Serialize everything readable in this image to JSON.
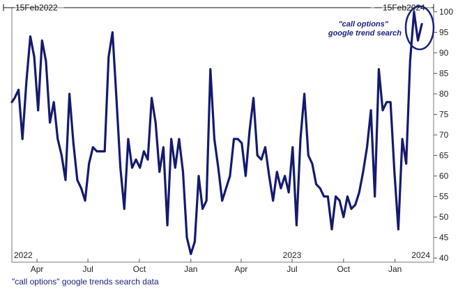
{
  "chart_data": {
    "type": "line",
    "range_start_label": "15Feb2022",
    "range_end_label": "15Feb2024",
    "annotation": [
      "\"call options\"",
      "google trend search"
    ],
    "source": "\"call options\" google trends search data",
    "y_ticks": [
      "40",
      "45",
      "50",
      "55",
      "60",
      "65",
      "70",
      "75",
      "80",
      "85",
      "90",
      "95",
      "100"
    ],
    "ylim": [
      39,
      101
    ],
    "x_tick_labels": [
      {
        "label": "Apr",
        "x": "2022-04-01"
      },
      {
        "label": "Jul",
        "x": "2022-07-01"
      },
      {
        "label": "Oct",
        "x": "2022-10-01"
      },
      {
        "label": "Jan",
        "x": "2023-01-01"
      },
      {
        "label": "Apr",
        "x": "2023-04-01"
      },
      {
        "label": "Jul",
        "x": "2023-07-01"
      },
      {
        "label": "Oct",
        "x": "2023-10-01"
      },
      {
        "label": "Jan",
        "x": "2024-01-01"
      }
    ],
    "year_labels": [
      {
        "label": "2022",
        "x": "2022-02-15"
      },
      {
        "label": "2023",
        "x": "2023-07-01"
      },
      {
        "label": "2024",
        "x": "2024-02-25"
      }
    ],
    "xlim": [
      "2022-02-15",
      "2024-03-10"
    ],
    "line_color": "#141a6e",
    "series": [
      {
        "points": [
          [
            "2022-02-15",
            78
          ],
          [
            "2022-02-20",
            79
          ],
          [
            "2022-02-27",
            81
          ],
          [
            "2022-03-06",
            69
          ],
          [
            "2022-03-13",
            83
          ],
          [
            "2022-03-20",
            94
          ],
          [
            "2022-03-27",
            89
          ],
          [
            "2022-04-03",
            76
          ],
          [
            "2022-04-10",
            93
          ],
          [
            "2022-04-17",
            88
          ],
          [
            "2022-04-24",
            73
          ],
          [
            "2022-05-01",
            78
          ],
          [
            "2022-05-08",
            69
          ],
          [
            "2022-05-15",
            65
          ],
          [
            "2022-05-22",
            59
          ],
          [
            "2022-05-29",
            80
          ],
          [
            "2022-06-05",
            68
          ],
          [
            "2022-06-12",
            59
          ],
          [
            "2022-06-19",
            57
          ],
          [
            "2022-06-26",
            54
          ],
          [
            "2022-07-03",
            63
          ],
          [
            "2022-07-10",
            67
          ],
          [
            "2022-07-17",
            66
          ],
          [
            "2022-07-24",
            66
          ],
          [
            "2022-07-31",
            66
          ],
          [
            "2022-08-07",
            89
          ],
          [
            "2022-08-14",
            95
          ],
          [
            "2022-08-21",
            79
          ],
          [
            "2022-08-28",
            62
          ],
          [
            "2022-09-04",
            52
          ],
          [
            "2022-09-11",
            69
          ],
          [
            "2022-09-18",
            62
          ],
          [
            "2022-09-25",
            64
          ],
          [
            "2022-10-02",
            62
          ],
          [
            "2022-10-09",
            66
          ],
          [
            "2022-10-16",
            64
          ],
          [
            "2022-10-23",
            79
          ],
          [
            "2022-10-30",
            73
          ],
          [
            "2022-11-06",
            61
          ],
          [
            "2022-11-13",
            67
          ],
          [
            "2022-11-20",
            48
          ],
          [
            "2022-11-27",
            69
          ],
          [
            "2022-12-04",
            62
          ],
          [
            "2022-12-11",
            69
          ],
          [
            "2022-12-18",
            61
          ],
          [
            "2022-12-25",
            45
          ],
          [
            "2023-01-01",
            41
          ],
          [
            "2023-01-08",
            44
          ],
          [
            "2023-01-15",
            60
          ],
          [
            "2023-01-22",
            52
          ],
          [
            "2023-01-29",
            54
          ],
          [
            "2023-02-05",
            86
          ],
          [
            "2023-02-12",
            69
          ],
          [
            "2023-02-19",
            62
          ],
          [
            "2023-02-26",
            54
          ],
          [
            "2023-03-05",
            57
          ],
          [
            "2023-03-12",
            60
          ],
          [
            "2023-03-19",
            69
          ],
          [
            "2023-03-26",
            69
          ],
          [
            "2023-04-02",
            68
          ],
          [
            "2023-04-09",
            60
          ],
          [
            "2023-04-16",
            71
          ],
          [
            "2023-04-23",
            79
          ],
          [
            "2023-04-30",
            65
          ],
          [
            "2023-05-07",
            64
          ],
          [
            "2023-05-14",
            67
          ],
          [
            "2023-05-21",
            60
          ],
          [
            "2023-05-28",
            54
          ],
          [
            "2023-06-04",
            61
          ],
          [
            "2023-06-11",
            57
          ],
          [
            "2023-06-18",
            60
          ],
          [
            "2023-06-25",
            56
          ],
          [
            "2023-07-02",
            67
          ],
          [
            "2023-07-09",
            48
          ],
          [
            "2023-07-16",
            69
          ],
          [
            "2023-07-23",
            80
          ],
          [
            "2023-07-30",
            65
          ],
          [
            "2023-08-06",
            63
          ],
          [
            "2023-08-13",
            58
          ],
          [
            "2023-08-20",
            57
          ],
          [
            "2023-08-27",
            55
          ],
          [
            "2023-09-03",
            55
          ],
          [
            "2023-09-10",
            47
          ],
          [
            "2023-09-17",
            55
          ],
          [
            "2023-09-24",
            54
          ],
          [
            "2023-10-01",
            50
          ],
          [
            "2023-10-08",
            55
          ],
          [
            "2023-10-15",
            52
          ],
          [
            "2023-10-22",
            53
          ],
          [
            "2023-10-29",
            56
          ],
          [
            "2023-11-05",
            61
          ],
          [
            "2023-11-12",
            67
          ],
          [
            "2023-11-19",
            76
          ],
          [
            "2023-11-26",
            55
          ],
          [
            "2023-12-03",
            86
          ],
          [
            "2023-12-10",
            76
          ],
          [
            "2023-12-17",
            78
          ],
          [
            "2023-12-24",
            78
          ],
          [
            "2023-12-31",
            61
          ],
          [
            "2024-01-07",
            47
          ],
          [
            "2024-01-14",
            69
          ],
          [
            "2024-01-21",
            63
          ],
          [
            "2024-01-28",
            88
          ],
          [
            "2024-02-04",
            100
          ],
          [
            "2024-02-11",
            93
          ],
          [
            "2024-02-18",
            97
          ]
        ]
      }
    ]
  }
}
